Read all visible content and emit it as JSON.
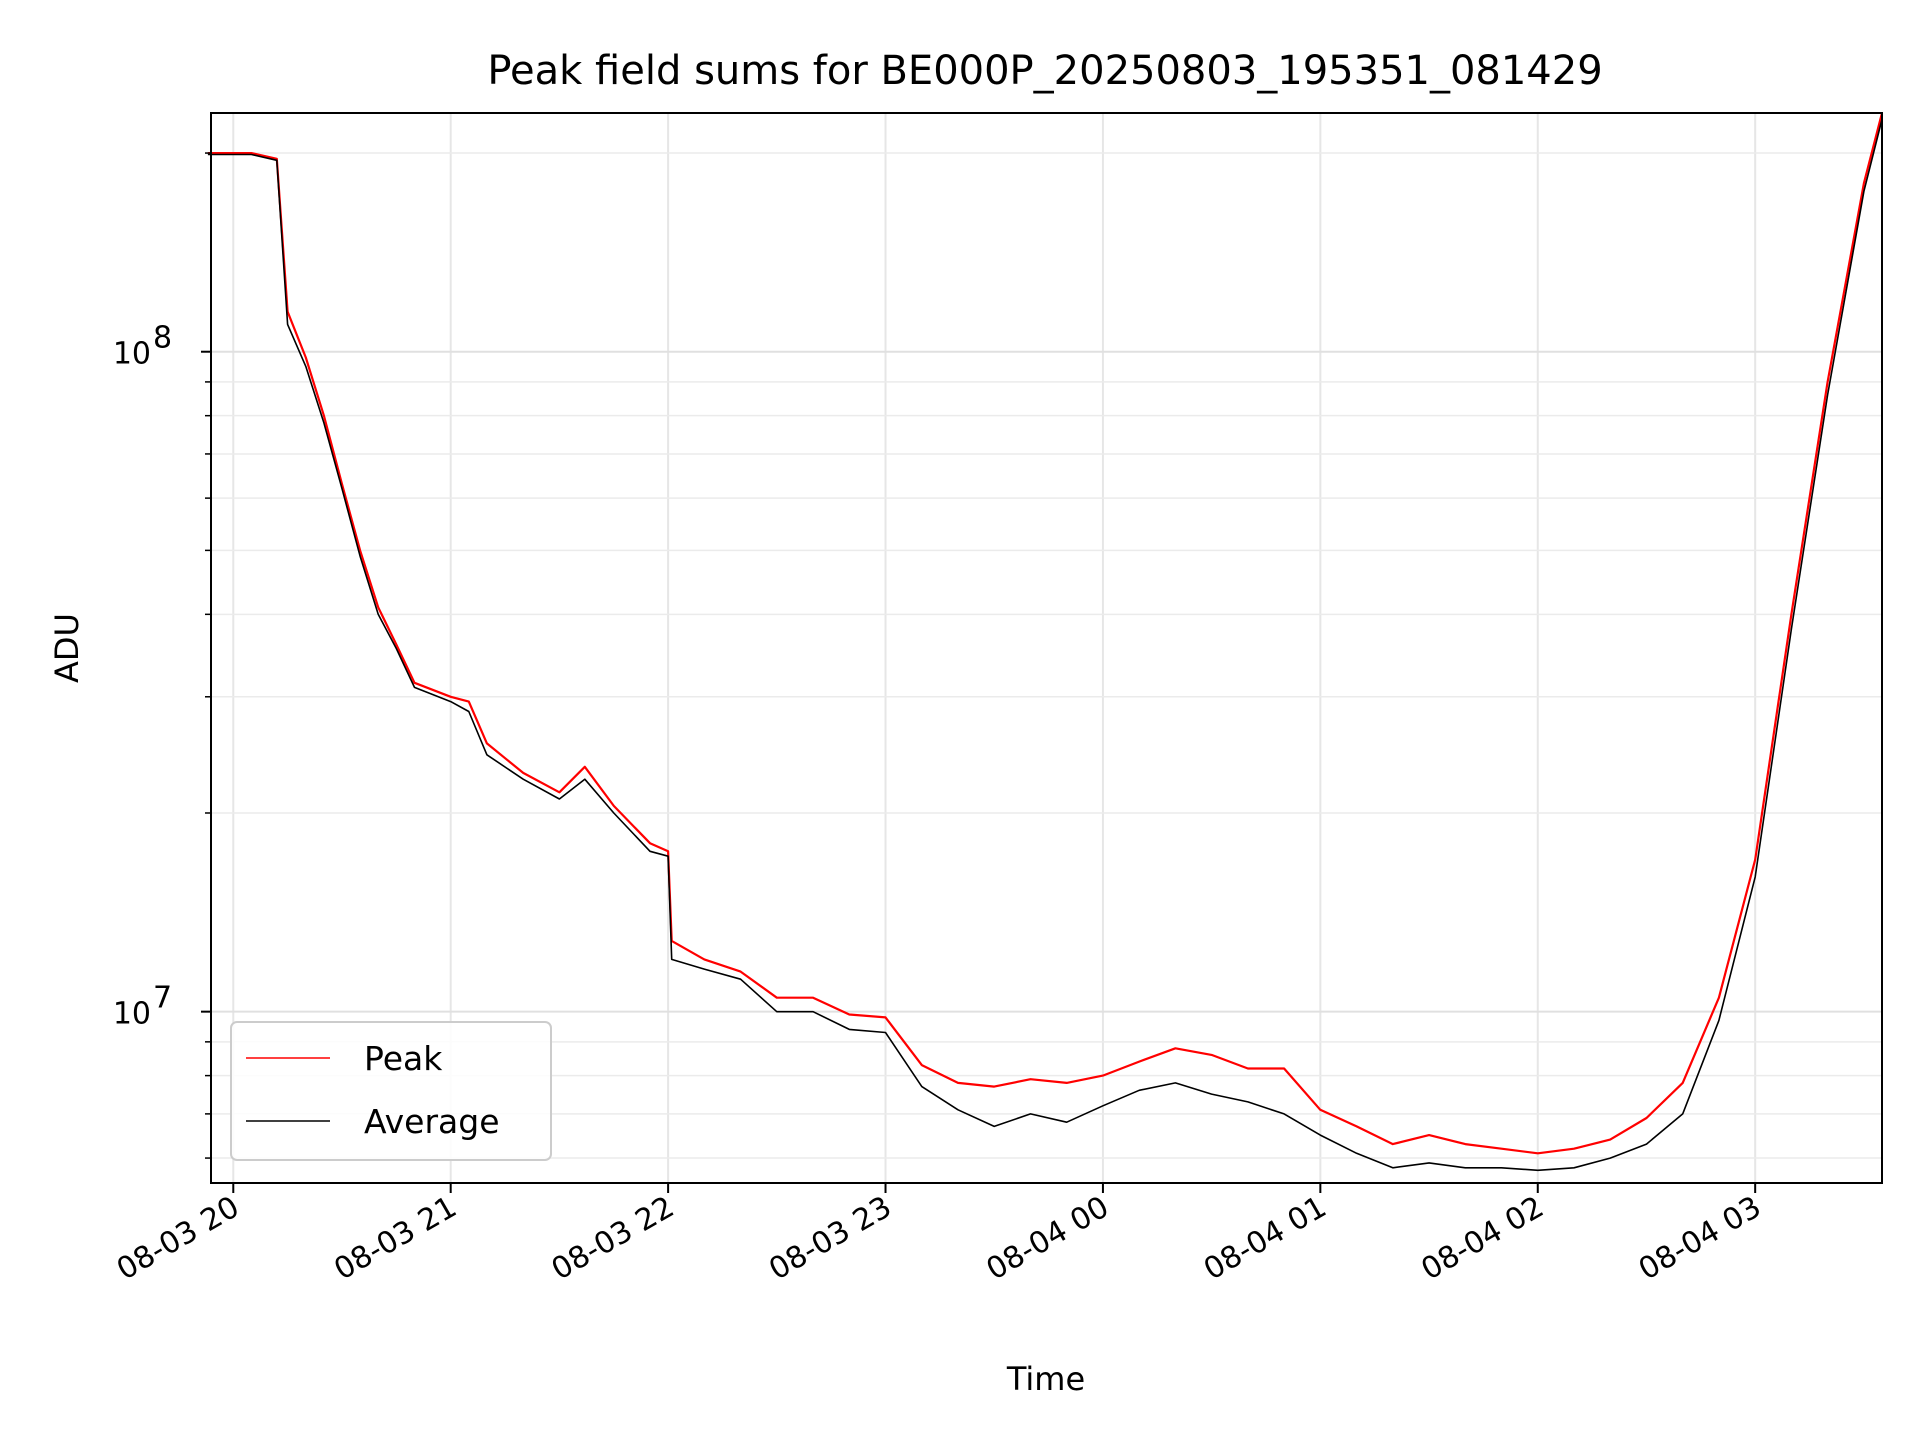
{
  "chart_data": {
    "type": "line",
    "title": "Peak field sums for BE000P_20250803_195351_081429",
    "xlabel": "Time",
    "ylabel": "ADU",
    "y_scale": "log",
    "ylim": [
      5500000,
      230000000
    ],
    "xlim": [
      "2025-08-03 19:53:51",
      "2025-08-04 03:35:00"
    ],
    "grid": true,
    "legend_placement": "lower-left",
    "x_ticks": [
      {
        "value": "2025-08-03 20:00",
        "label": "08-03 20"
      },
      {
        "value": "2025-08-03 21:00",
        "label": "08-03 21"
      },
      {
        "value": "2025-08-03 22:00",
        "label": "08-03 22"
      },
      {
        "value": "2025-08-03 23:00",
        "label": "08-03 23"
      },
      {
        "value": "2025-08-04 00:00",
        "label": "08-04 00"
      },
      {
        "value": "2025-08-04 01:00",
        "label": "08-04 01"
      },
      {
        "value": "2025-08-04 02:00",
        "label": "08-04 02"
      },
      {
        "value": "2025-08-04 03:00",
        "label": "08-04 03"
      }
    ],
    "y_ticks": [
      {
        "value": 10000000,
        "base": "10",
        "exp": "7"
      },
      {
        "value": 100000000,
        "base": "10",
        "exp": "8"
      }
    ],
    "series": [
      {
        "name": "Peak",
        "color": "#ff0000",
        "x": [
          "2025-08-03 19:53",
          "2025-08-03 20:05",
          "2025-08-03 20:12",
          "2025-08-03 20:15",
          "2025-08-03 20:20",
          "2025-08-03 20:25",
          "2025-08-03 20:30",
          "2025-08-03 20:35",
          "2025-08-03 20:40",
          "2025-08-03 20:45",
          "2025-08-03 20:50",
          "2025-08-03 21:00",
          "2025-08-03 21:05",
          "2025-08-03 21:10",
          "2025-08-03 21:20",
          "2025-08-03 21:30",
          "2025-08-03 21:37",
          "2025-08-03 21:45",
          "2025-08-03 21:55",
          "2025-08-03 22:00",
          "2025-08-03 22:01",
          "2025-08-03 22:10",
          "2025-08-03 22:20",
          "2025-08-03 22:30",
          "2025-08-03 22:40",
          "2025-08-03 22:50",
          "2025-08-03 23:00",
          "2025-08-03 23:10",
          "2025-08-03 23:20",
          "2025-08-03 23:30",
          "2025-08-03 23:40",
          "2025-08-03 23:50",
          "2025-08-04 00:00",
          "2025-08-04 00:10",
          "2025-08-04 00:20",
          "2025-08-04 00:30",
          "2025-08-04 00:40",
          "2025-08-04 00:50",
          "2025-08-04 01:00",
          "2025-08-04 01:10",
          "2025-08-04 01:20",
          "2025-08-04 01:30",
          "2025-08-04 01:40",
          "2025-08-04 01:50",
          "2025-08-04 02:00",
          "2025-08-04 02:10",
          "2025-08-04 02:20",
          "2025-08-04 02:30",
          "2025-08-04 02:40",
          "2025-08-04 02:50",
          "2025-08-04 03:00",
          "2025-08-04 03:10",
          "2025-08-04 03:20",
          "2025-08-04 03:30",
          "2025-08-04 03:35"
        ],
        "values": [
          200000000,
          200000000,
          196000000,
          115000000,
          98000000,
          80000000,
          63000000,
          50000000,
          41000000,
          36000000,
          31500000,
          30000000,
          29500000,
          25500000,
          23000000,
          21500000,
          23500000,
          20500000,
          18000000,
          17500000,
          12800000,
          12000000,
          11500000,
          10500000,
          10500000,
          9900000,
          9800000,
          8300000,
          7800000,
          7700000,
          7900000,
          7800000,
          8000000,
          8400000,
          8800000,
          8600000,
          8200000,
          8200000,
          7100000,
          6700000,
          6300000,
          6500000,
          6300000,
          6200000,
          6100000,
          6200000,
          6400000,
          6900000,
          7800000,
          10500000,
          17000000,
          40000000,
          90000000,
          180000000,
          230000000
        ]
      },
      {
        "name": "Average",
        "color": "#000000",
        "x": [
          "2025-08-03 19:53",
          "2025-08-03 20:05",
          "2025-08-03 20:12",
          "2025-08-03 20:15",
          "2025-08-03 20:20",
          "2025-08-03 20:25",
          "2025-08-03 20:30",
          "2025-08-03 20:35",
          "2025-08-03 20:40",
          "2025-08-03 20:45",
          "2025-08-03 20:50",
          "2025-08-03 21:00",
          "2025-08-03 21:05",
          "2025-08-03 21:10",
          "2025-08-03 21:20",
          "2025-08-03 21:30",
          "2025-08-03 21:37",
          "2025-08-03 21:45",
          "2025-08-03 21:55",
          "2025-08-03 22:00",
          "2025-08-03 22:01",
          "2025-08-03 22:10",
          "2025-08-03 22:20",
          "2025-08-03 22:30",
          "2025-08-03 22:40",
          "2025-08-03 22:50",
          "2025-08-03 23:00",
          "2025-08-03 23:10",
          "2025-08-03 23:20",
          "2025-08-03 23:30",
          "2025-08-03 23:40",
          "2025-08-03 23:50",
          "2025-08-04 00:00",
          "2025-08-04 00:10",
          "2025-08-04 00:20",
          "2025-08-04 00:30",
          "2025-08-04 00:40",
          "2025-08-04 00:50",
          "2025-08-04 01:00",
          "2025-08-04 01:10",
          "2025-08-04 01:20",
          "2025-08-04 01:30",
          "2025-08-04 01:40",
          "2025-08-04 01:50",
          "2025-08-04 02:00",
          "2025-08-04 02:10",
          "2025-08-04 02:20",
          "2025-08-04 02:30",
          "2025-08-04 02:40",
          "2025-08-04 02:50",
          "2025-08-04 03:00",
          "2025-08-04 03:10",
          "2025-08-04 03:20",
          "2025-08-04 03:30",
          "2025-08-04 03:35"
        ],
        "values": [
          199000000,
          199000000,
          195000000,
          110000000,
          95000000,
          78000000,
          62000000,
          49000000,
          40000000,
          35500000,
          31000000,
          29500000,
          28500000,
          24500000,
          22500000,
          21000000,
          22500000,
          20000000,
          17500000,
          17200000,
          12000000,
          11600000,
          11200000,
          10000000,
          10000000,
          9400000,
          9300000,
          7700000,
          7100000,
          6700000,
          7000000,
          6800000,
          7200000,
          7600000,
          7800000,
          7500000,
          7300000,
          7000000,
          6500000,
          6100000,
          5800000,
          5900000,
          5800000,
          5800000,
          5750000,
          5800000,
          6000000,
          6300000,
          7000000,
          9700000,
          16000000,
          38000000,
          86000000,
          175000000,
          225000000
        ]
      }
    ]
  }
}
